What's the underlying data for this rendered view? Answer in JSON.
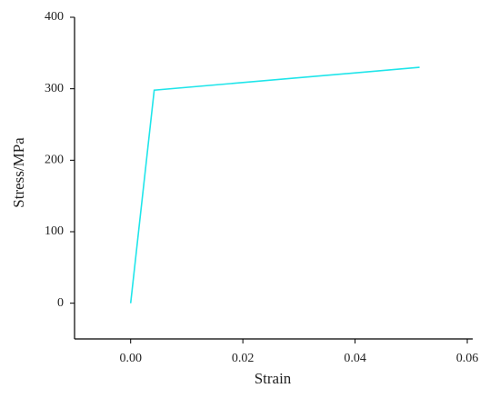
{
  "chart_data": {
    "type": "line",
    "x_label": "Strain",
    "y_label": "Stress/MPa",
    "x": [
      0,
      0.0042,
      0.0515
    ],
    "series": [
      {
        "name": "Stress",
        "color": "#1fe5ea",
        "values": [
          0,
          298,
          330
        ]
      }
    ],
    "xlim": [
      -0.01,
      0.06
    ],
    "xticks": [
      {
        "value": 0,
        "label": "0.00"
      },
      {
        "value": 0.02,
        "label": "0.02"
      },
      {
        "value": 0.04,
        "label": "0.04"
      },
      {
        "value": 0.06,
        "label": "0.06"
      }
    ],
    "ylim": [
      -50,
      400
    ],
    "yticks": [
      0,
      100,
      200,
      300,
      400
    ]
  }
}
